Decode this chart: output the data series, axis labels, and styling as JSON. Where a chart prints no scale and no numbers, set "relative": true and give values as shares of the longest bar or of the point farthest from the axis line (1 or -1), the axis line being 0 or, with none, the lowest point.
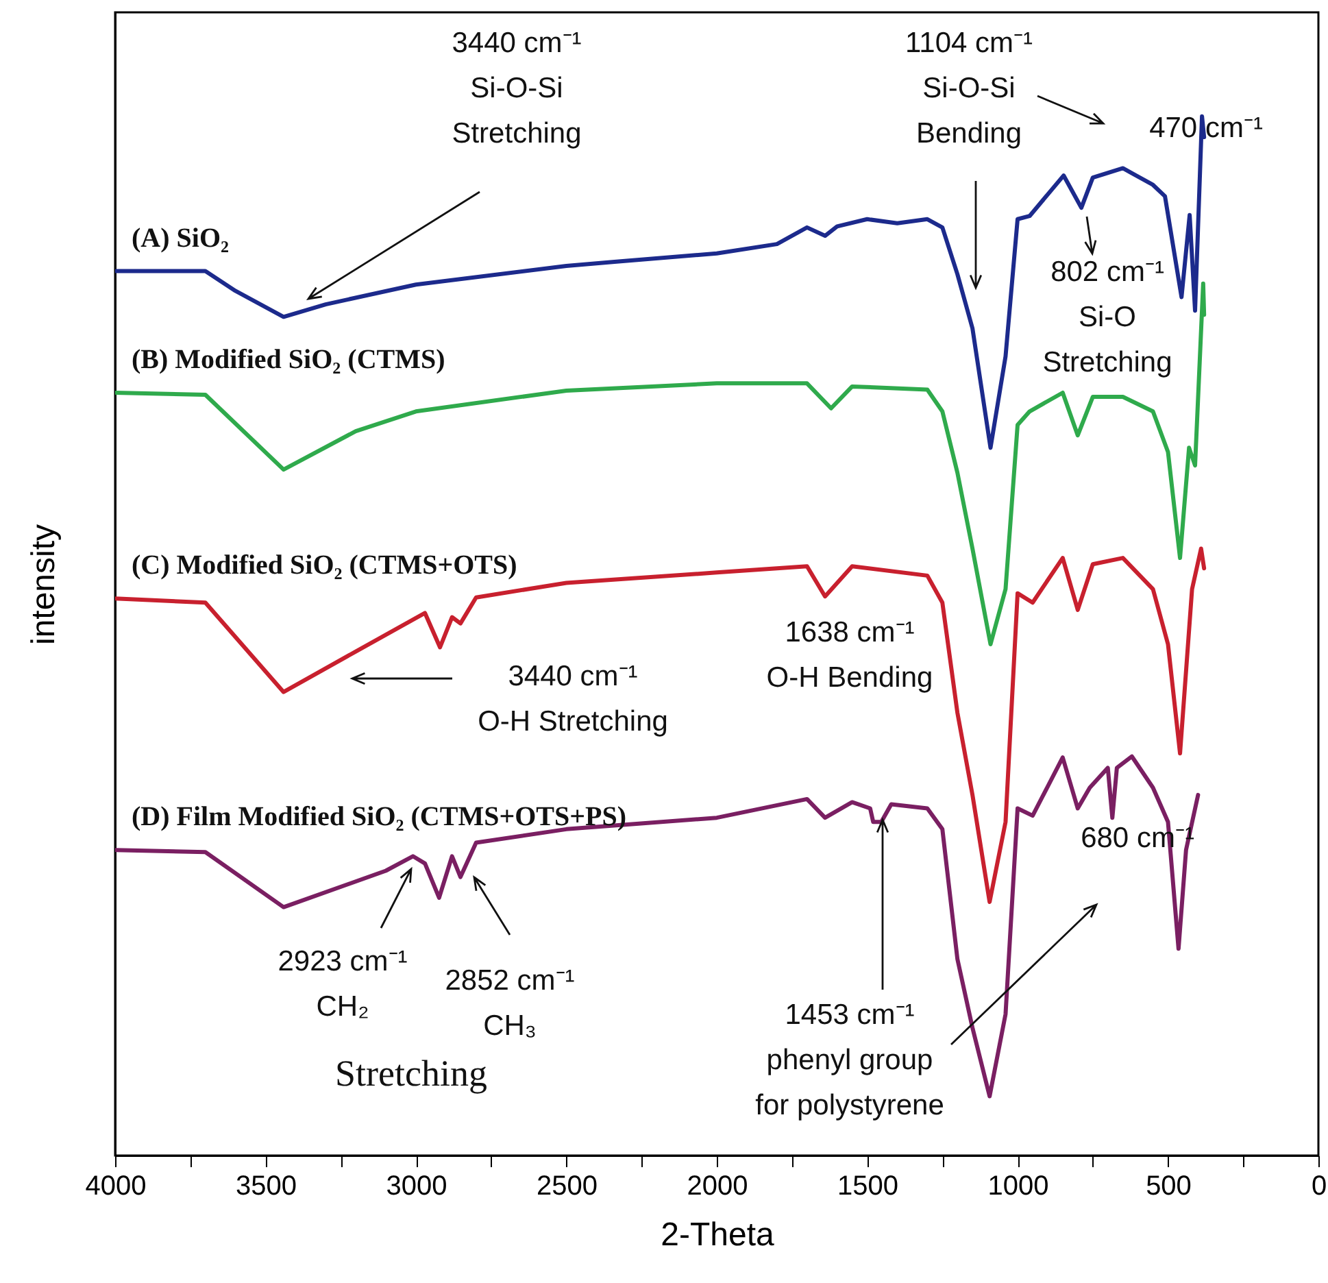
{
  "chart_data": {
    "type": "line",
    "relative": true,
    "xlabel": "2-Theta",
    "ylabel": "intensity",
    "xlim": [
      4000,
      0
    ],
    "xticks": [
      4000,
      {
        "value": 3750,
        "label": null
      },
      3500,
      {
        "value": 3250,
        "label": null
      },
      3000,
      {
        "value": 2750,
        "label": null
      },
      2500,
      {
        "value": 2250,
        "label": null
      },
      2000,
      {
        "value": 1750,
        "label": null
      },
      1500,
      {
        "value": 1250,
        "label": null
      },
      1000,
      {
        "value": 750,
        "label": null
      },
      500,
      {
        "value": 250,
        "label": null
      },
      0
    ],
    "series": [
      {
        "name": "(A)  SiO₂",
        "color": "#1c2a8c",
        "x": [
          4000,
          3700,
          3600,
          3440,
          3300,
          3000,
          2500,
          2340,
          2000,
          1800,
          1700,
          1640,
          1600,
          1500,
          1400,
          1300,
          1250,
          1200,
          1150,
          1090,
          1040,
          1000,
          960,
          847,
          788,
          750,
          650,
          550,
          510,
          455,
          428,
          410,
          387,
          380
        ],
        "values": [
          0.851,
          0.851,
          0.832,
          0.807,
          0.819,
          0.838,
          0.856,
          0.86,
          0.868,
          0.877,
          0.893,
          0.885,
          0.894,
          0.901,
          0.897,
          0.901,
          0.893,
          0.848,
          0.796,
          0.681,
          0.769,
          0.901,
          0.904,
          0.943,
          0.912,
          0.941,
          0.95,
          0.934,
          0.923,
          0.826,
          0.905,
          0.813,
          1.0,
          0.98
        ]
      },
      {
        "name": "(B) Modified SiO₂ (CTMS)",
        "color": "#2faa4c",
        "x": [
          4000,
          3700,
          3440,
          3200,
          3000,
          2500,
          2000,
          1700,
          1620,
          1550,
          1300,
          1250,
          1200,
          1150,
          1090,
          1040,
          1000,
          960,
          850,
          800,
          750,
          650,
          550,
          500,
          460,
          430,
          410,
          383,
          380
        ],
        "values": [
          0.734,
          0.732,
          0.66,
          0.697,
          0.716,
          0.736,
          0.743,
          0.743,
          0.719,
          0.74,
          0.737,
          0.716,
          0.657,
          0.584,
          0.492,
          0.545,
          0.703,
          0.716,
          0.734,
          0.693,
          0.73,
          0.73,
          0.716,
          0.677,
          0.575,
          0.681,
          0.664,
          0.839,
          0.809
        ]
      },
      {
        "name": "(C) Modified SiO₂ (CTMS+OTS)",
        "color": "#c8202e",
        "x": [
          4000,
          3700,
          3440,
          3200,
          2970,
          2920,
          2880,
          2852,
          2800,
          2500,
          2000,
          1700,
          1640,
          1550,
          1300,
          1250,
          1200,
          1150,
          1093,
          1040,
          1000,
          950,
          850,
          800,
          750,
          650,
          550,
          500,
          460,
          420,
          390,
          380
        ],
        "values": [
          0.536,
          0.532,
          0.446,
          0.485,
          0.522,
          0.489,
          0.518,
          0.512,
          0.537,
          0.551,
          0.561,
          0.567,
          0.538,
          0.567,
          0.558,
          0.532,
          0.426,
          0.347,
          0.244,
          0.321,
          0.541,
          0.532,
          0.575,
          0.525,
          0.569,
          0.575,
          0.545,
          0.492,
          0.387,
          0.545,
          0.584,
          0.565
        ]
      },
      {
        "name": "(D) Film Modified SiO₂ (CTMS+OTS+PS)",
        "color": "#7a1f62",
        "x": [
          4000,
          3700,
          3440,
          3100,
          3010,
          2970,
          2923,
          2880,
          2852,
          2800,
          2500,
          2000,
          1700,
          1640,
          1550,
          1490,
          1480,
          1453,
          1420,
          1300,
          1250,
          1200,
          1150,
          1093,
          1040,
          1000,
          950,
          850,
          800,
          760,
          700,
          685,
          670,
          620,
          550,
          500,
          465,
          440,
          400
        ],
        "values": [
          0.294,
          0.292,
          0.239,
          0.274,
          0.288,
          0.281,
          0.248,
          0.288,
          0.268,
          0.301,
          0.314,
          0.325,
          0.343,
          0.325,
          0.34,
          0.334,
          0.321,
          0.321,
          0.338,
          0.334,
          0.314,
          0.189,
          0.123,
          0.057,
          0.136,
          0.334,
          0.327,
          0.383,
          0.334,
          0.354,
          0.373,
          0.325,
          0.373,
          0.384,
          0.354,
          0.321,
          0.199,
          0.294,
          0.347
        ]
      }
    ],
    "annotations": [
      "3440 cm⁻¹\nSi-O-Si\nStretching",
      "1104 cm⁻¹\nSi-O-Si\nBending",
      "470 cm⁻¹",
      "802 cm⁻¹\nSi-O\nStretching",
      "3440 cm⁻¹\nO-H Stretching",
      "1638 cm⁻¹\nO-H Bending",
      "2923 cm⁻¹\nCH₂",
      "2852 cm⁻¹\nCH₃",
      "Stretching",
      "1453 cm⁻¹\nphenyl group\nfor polystyrene",
      "680 cm⁻¹"
    ]
  }
}
